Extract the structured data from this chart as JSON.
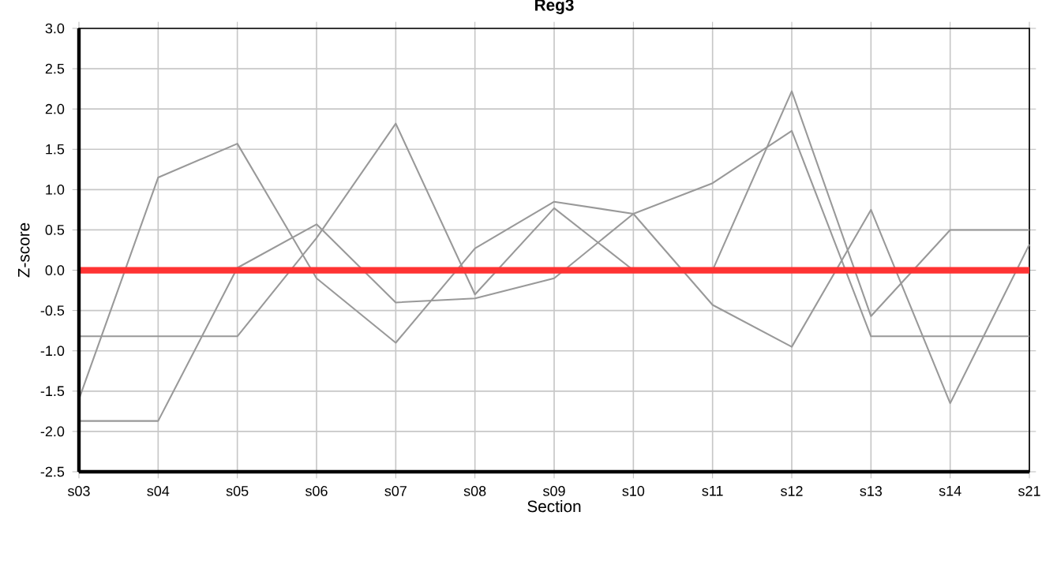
{
  "chart_data": {
    "type": "line",
    "title": "Reg3",
    "xlabel": "Section",
    "ylabel": "Z-score",
    "categories": [
      "s03",
      "s04",
      "s05",
      "s06",
      "s07",
      "s08",
      "s09",
      "s10",
      "s11",
      "s12",
      "s13",
      "s14",
      "s21"
    ],
    "series": [
      {
        "color": "#999999",
        "values": [
          -1.6,
          1.15,
          1.57,
          -0.1,
          -0.9,
          0.27,
          0.85,
          0.7,
          1.08,
          1.73,
          -0.82,
          -0.82,
          -0.82
        ]
      },
      {
        "color": "#999999",
        "values": [
          -1.87,
          -1.87,
          0.03,
          0.57,
          -0.4,
          -0.35,
          -0.1,
          0.7,
          -0.43,
          -0.95,
          0.75,
          -1.65,
          0.32
        ]
      },
      {
        "color": "#999999",
        "values": [
          -0.82,
          -0.82,
          -0.82,
          0.4,
          1.82,
          -0.3,
          0.77,
          0.0,
          0.0,
          2.22,
          -0.57,
          0.5,
          0.5
        ]
      }
    ],
    "ylim": [
      -2.5,
      3.0
    ],
    "yticks": [
      {
        "value": -2.5,
        "label": "-2.5"
      },
      {
        "value": -2.0,
        "label": "-2.0"
      },
      {
        "value": -1.5,
        "label": "-1.5"
      },
      {
        "value": -1.0,
        "label": "-1.0"
      },
      {
        "value": -0.5,
        "label": "-0.5"
      },
      {
        "value": 0,
        "label": "0.0"
      },
      {
        "value": 0.5,
        "label": "0.5"
      },
      {
        "value": 1.0,
        "label": "1.0"
      },
      {
        "value": 1.5,
        "label": "1.5"
      },
      {
        "value": 2.0,
        "label": "2.0"
      },
      {
        "value": 2.5,
        "label": "2.5"
      },
      {
        "value": 3.0,
        "label": "3.0"
      }
    ],
    "ref_lines": [
      {
        "axis": "y",
        "value": 0,
        "color": "#ff3333",
        "line_style": "solid"
      }
    ],
    "grid": true,
    "marker": "none",
    "line_style": "solid"
  }
}
